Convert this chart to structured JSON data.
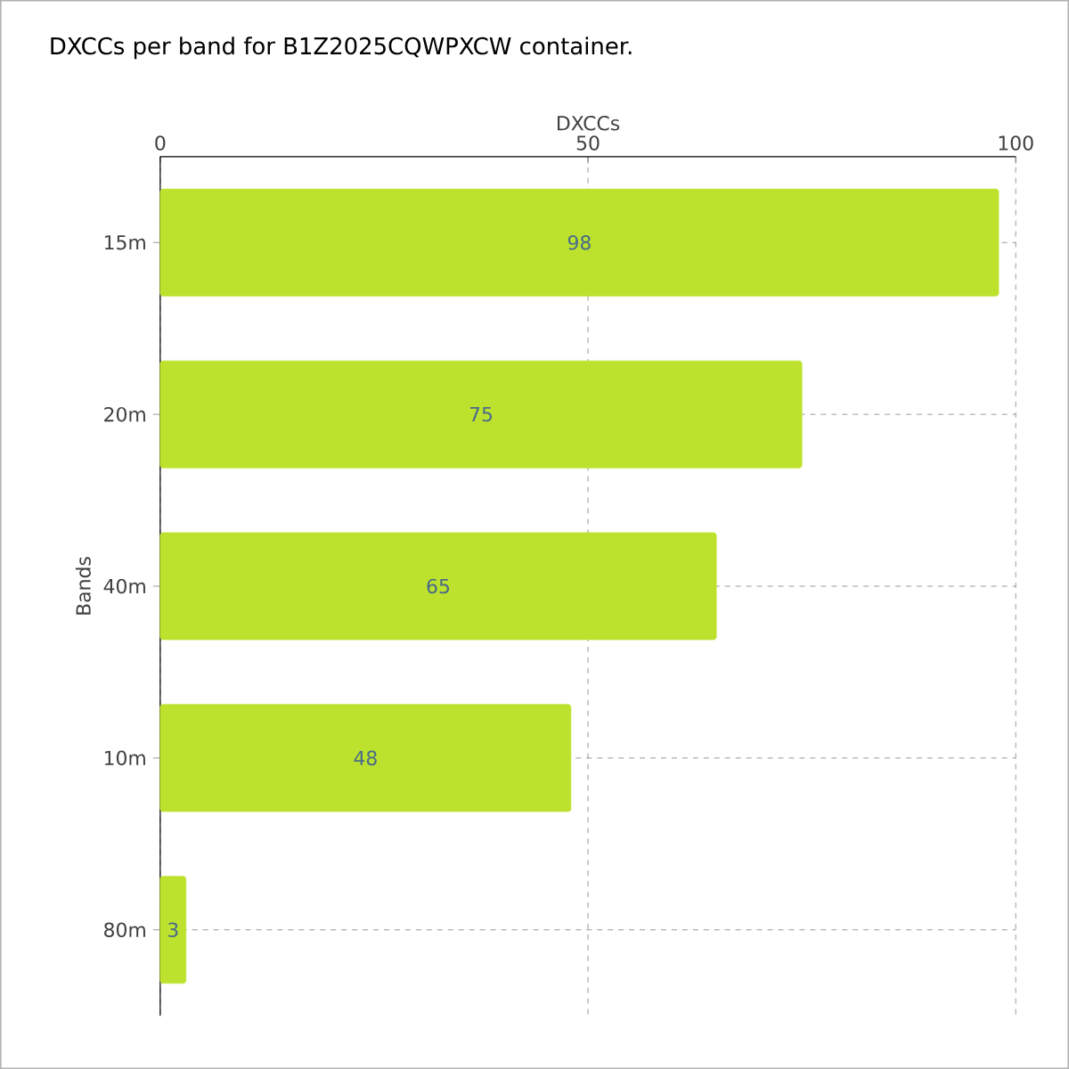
{
  "chart_data": {
    "type": "bar",
    "orientation": "horizontal",
    "title": "DXCCs per band for B1Z2025CQWPXCW container.",
    "xlabel": "DXCCs",
    "ylabel": "Bands",
    "categories": [
      "15m",
      "20m",
      "40m",
      "10m",
      "80m"
    ],
    "values": [
      98,
      75,
      65,
      48,
      3
    ],
    "color": "#bde22e",
    "xlim": [
      0,
      100
    ],
    "xticks": [
      0,
      50,
      100
    ],
    "grid": true,
    "data_labels": true
  }
}
